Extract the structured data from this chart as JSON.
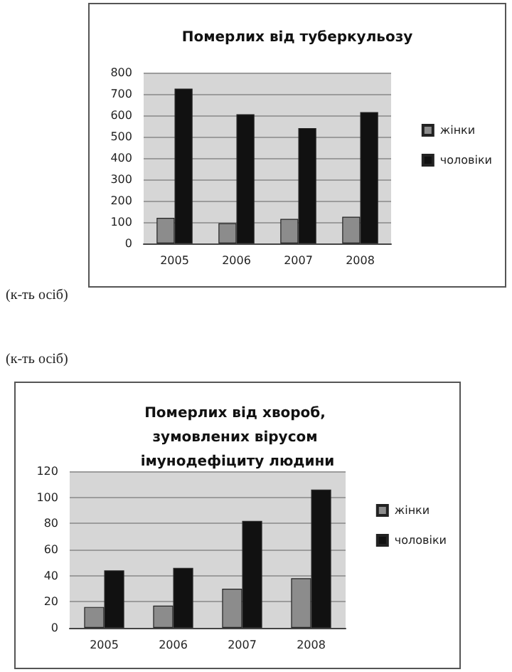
{
  "chart_data": [
    {
      "type": "bar",
      "title": "Померлих від туберкульозу",
      "ylabel": "(к-ть осіб)",
      "categories": [
        "2005",
        "2006",
        "2007",
        "2008"
      ],
      "series": [
        {
          "name": "жінки",
          "color": "#8c8c8c",
          "values": [
            120,
            95,
            115,
            125
          ]
        },
        {
          "name": "чоловіки",
          "color": "#111111",
          "values": [
            725,
            605,
            540,
            615
          ]
        }
      ],
      "ylim": [
        0,
        800
      ],
      "yticks": [
        0,
        100,
        200,
        300,
        400,
        500,
        600,
        700,
        800
      ],
      "grid": "y",
      "legend": "right"
    },
    {
      "type": "bar",
      "title": "Померлих від хвороб, зумовлених вірусом імунодефіциту людини",
      "ylabel": "(к-ть осіб)",
      "categories": [
        "2005",
        "2006",
        "2007",
        "2008"
      ],
      "series": [
        {
          "name": "жінки",
          "color": "#8c8c8c",
          "values": [
            16,
            17,
            30,
            38
          ]
        },
        {
          "name": "чоловіки",
          "color": "#111111",
          "values": [
            44,
            46,
            82,
            106
          ]
        }
      ],
      "ylim": [
        0,
        120
      ],
      "yticks": [
        0,
        20,
        40,
        60,
        80,
        100,
        120
      ],
      "grid": "y",
      "legend": "right"
    }
  ]
}
